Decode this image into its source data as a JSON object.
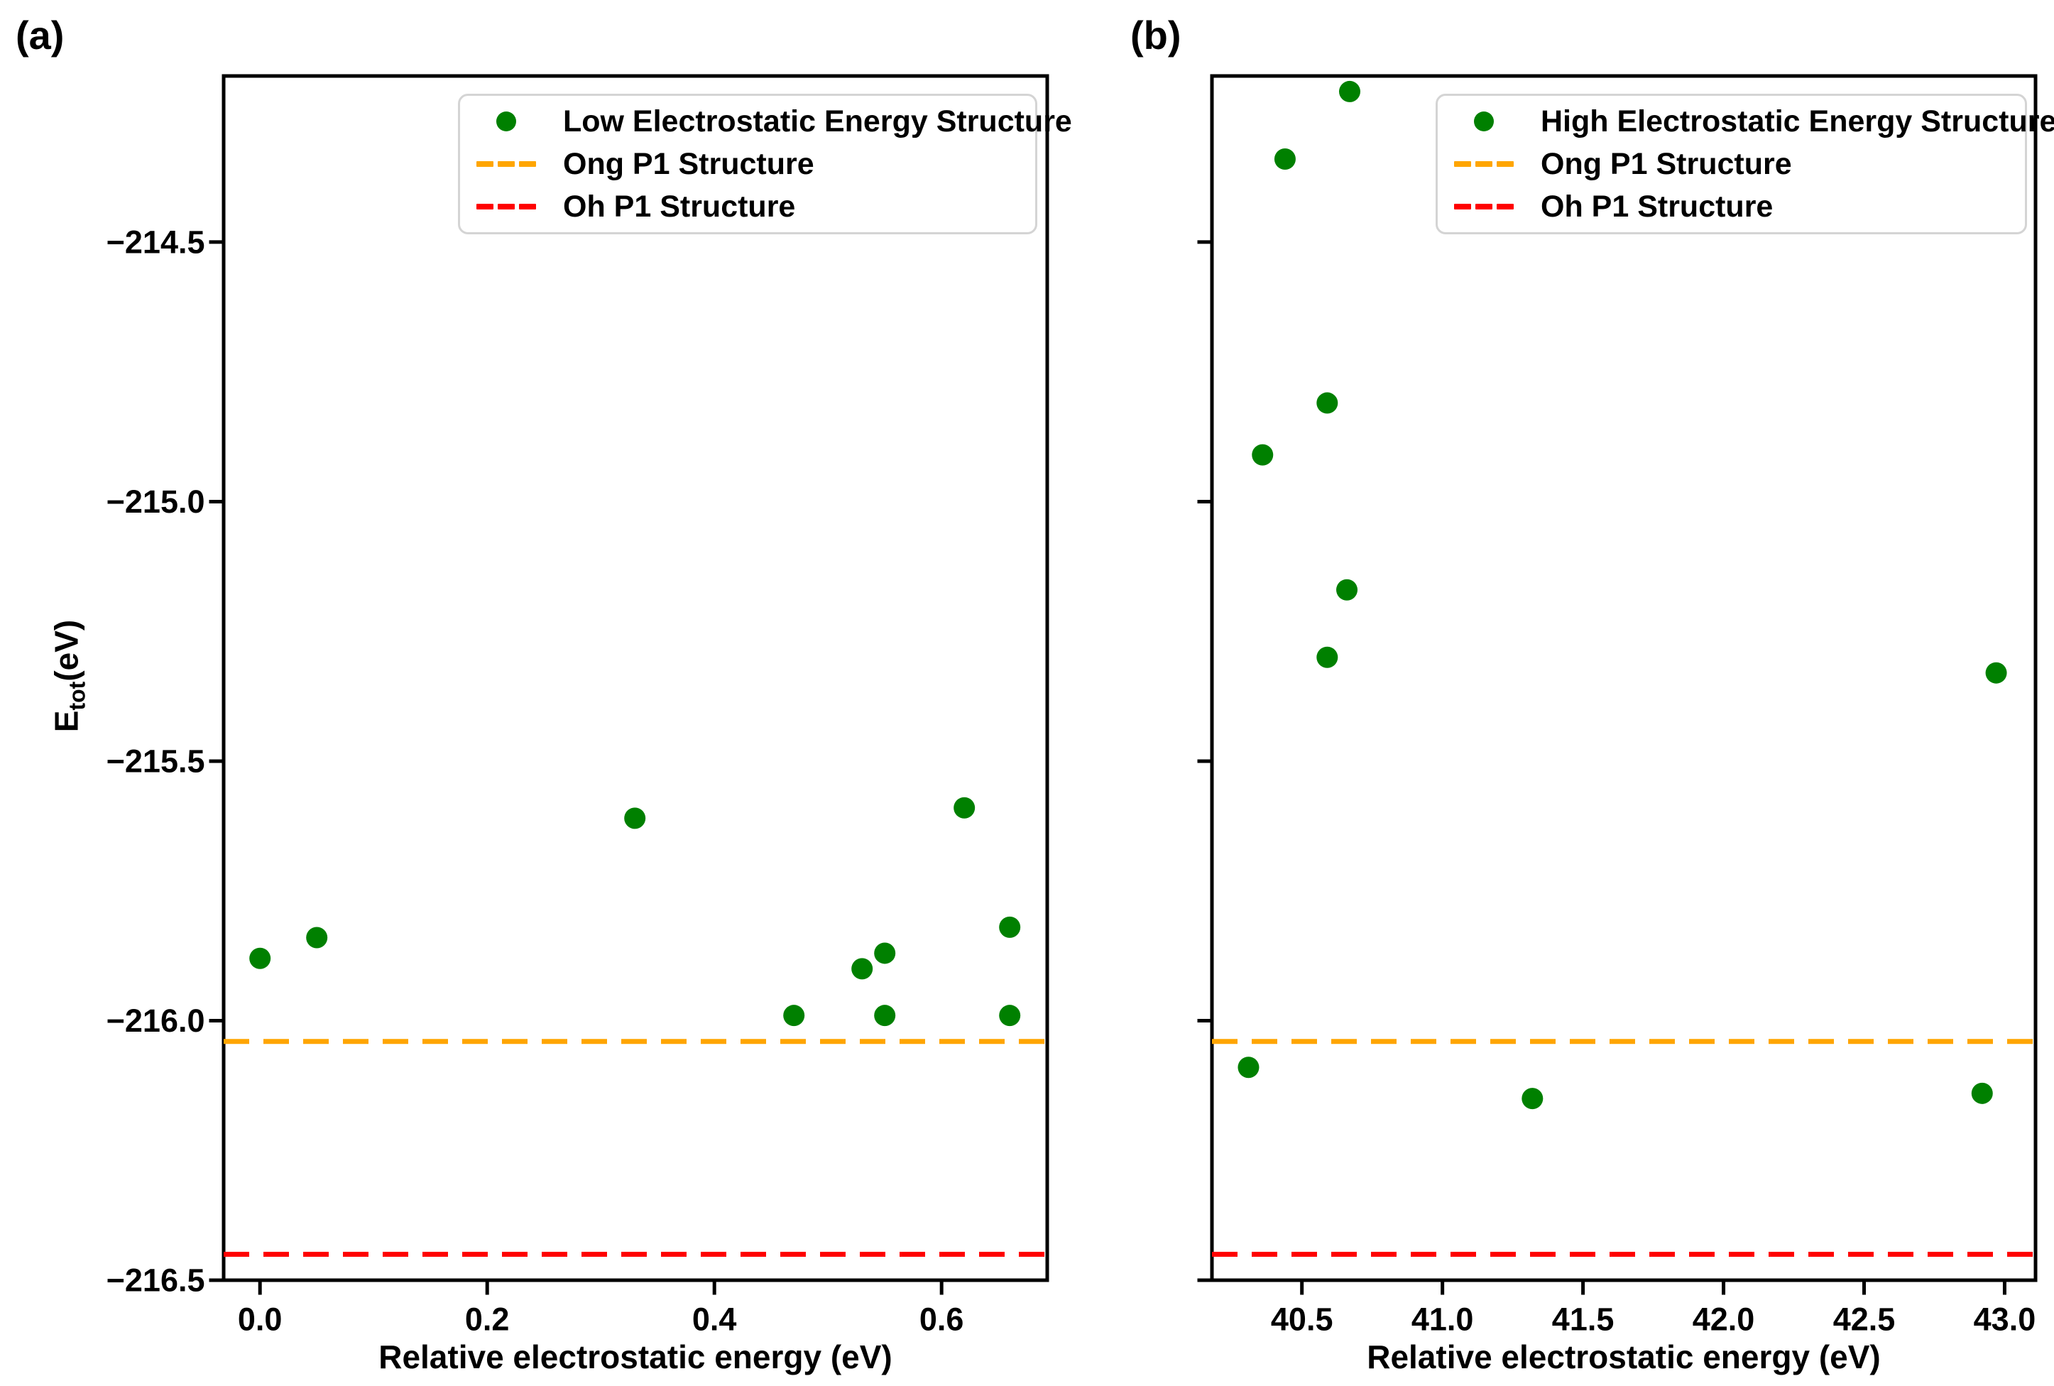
{
  "figure": {
    "panel_a_label": "(a)",
    "panel_b_label": "(b)",
    "xlabel": "Relative electrostatic energy (eV)",
    "ylabel": {
      "main": "E",
      "sub": "tot",
      "unit": "(eV)"
    },
    "colors": {
      "scatter_green": "#008000",
      "ong_orange": "#FFA500",
      "oh_red": "#FF0000",
      "axis_black": "#000000",
      "legend_border": "#d4d4d4"
    },
    "legend_a": {
      "entries": [
        {
          "swatch": "marker",
          "label": "Low Electrostatic Energy Structure"
        },
        {
          "swatch": "dash-orange",
          "label": "Ong P1 Structure"
        },
        {
          "swatch": "dash-red",
          "label": "Oh P1 Structure"
        }
      ]
    },
    "legend_b": {
      "entries": [
        {
          "swatch": "marker",
          "label": "High Electrostatic Energy Structure"
        },
        {
          "swatch": "dash-orange",
          "label": "Ong P1 Structure"
        },
        {
          "swatch": "dash-red",
          "label": "Oh P1 Structure"
        }
      ]
    }
  },
  "chart_data": [
    {
      "type": "scatter",
      "panel": "a",
      "xlabel": "Relative electrostatic energy (eV)",
      "ylabel": "E_tot(eV)",
      "xlim": [
        -0.032,
        0.693
      ],
      "ylim": [
        -216.5,
        -214.18
      ],
      "xticks": [
        0.0,
        0.2,
        0.4,
        0.6
      ],
      "yticks": [
        -214.5,
        -215.0,
        -215.5,
        -216.0,
        -216.5
      ],
      "ytick_labels_visible": true,
      "grid": false,
      "legend_position": "upper right",
      "series": [
        {
          "name": "Low Electrostatic Energy Structure",
          "type": "scatter",
          "color": "#008000",
          "points": [
            [
              0.0,
              -215.88
            ],
            [
              0.05,
              -215.84
            ],
            [
              0.33,
              -215.61
            ],
            [
              0.47,
              -215.99
            ],
            [
              0.53,
              -215.9
            ],
            [
              0.55,
              -215.87
            ],
            [
              0.55,
              -215.99
            ],
            [
              0.62,
              -215.59
            ],
            [
              0.66,
              -215.82
            ],
            [
              0.66,
              -215.99
            ]
          ]
        },
        {
          "name": "Ong P1 Structure",
          "type": "hline",
          "color": "#FFA500",
          "y": -216.04
        },
        {
          "name": "Oh P1 Structure",
          "type": "hline",
          "color": "#FF0000",
          "y": -216.45
        }
      ]
    },
    {
      "type": "scatter",
      "panel": "b",
      "xlabel": "Relative electrostatic energy (eV)",
      "ylabel": "",
      "xlim": [
        40.18,
        43.11
      ],
      "ylim": [
        -216.5,
        -214.18
      ],
      "xticks": [
        40.5,
        41.0,
        41.5,
        42.0,
        42.5,
        43.0
      ],
      "yticks": [
        -214.5,
        -215.0,
        -215.5,
        -216.0,
        -216.5
      ],
      "ytick_labels_visible": false,
      "grid": false,
      "legend_position": "upper right",
      "series": [
        {
          "name": "High Electrostatic Energy Structure",
          "type": "scatter",
          "color": "#008000",
          "points": [
            [
              40.67,
              -214.21
            ],
            [
              40.44,
              -214.34
            ],
            [
              40.59,
              -214.81
            ],
            [
              40.36,
              -214.91
            ],
            [
              40.66,
              -215.17
            ],
            [
              40.59,
              -215.3
            ],
            [
              42.97,
              -215.33
            ],
            [
              40.31,
              -216.09
            ],
            [
              41.32,
              -216.15
            ],
            [
              42.92,
              -216.14
            ]
          ]
        },
        {
          "name": "Ong P1 Structure",
          "type": "hline",
          "color": "#FFA500",
          "y": -216.04
        },
        {
          "name": "Oh P1 Structure",
          "type": "hline",
          "color": "#FF0000",
          "y": -216.45
        }
      ]
    }
  ]
}
